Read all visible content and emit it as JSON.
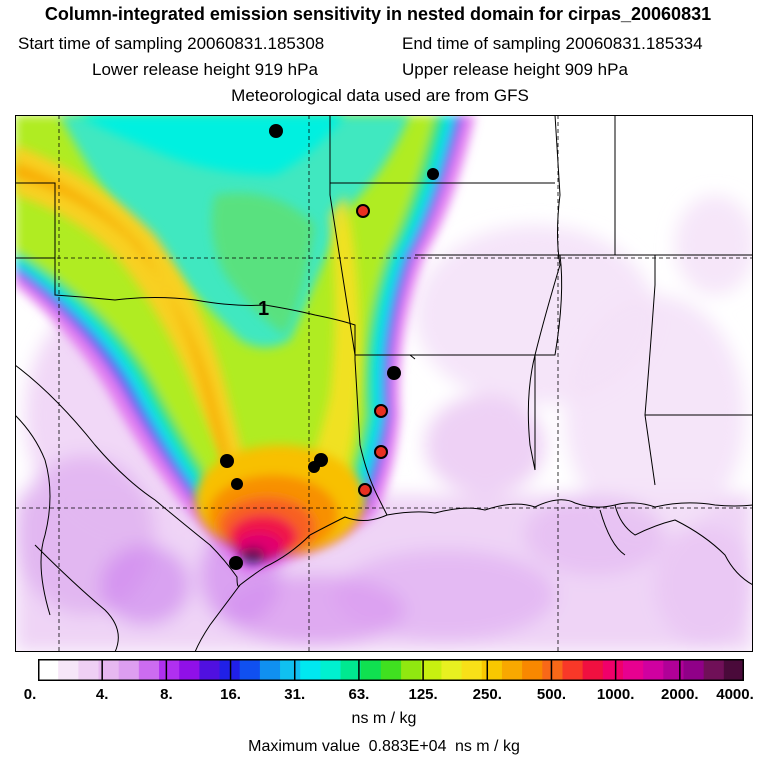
{
  "title": "Column-integrated emission sensitivity in nested domain for cirpas_20060831",
  "sampling": {
    "start_label": "Start time of sampling",
    "start_value": "20060831.185308",
    "end_label": "End time of sampling",
    "end_value": "20060831.185334"
  },
  "release": {
    "lower_label": "Lower release height",
    "lower_value": "919 hPa",
    "upper_label": "Upper release height",
    "upper_value": "909 hPa"
  },
  "met_note": "Meteorological data used are from GFS",
  "map": {
    "contour_label": "1",
    "colors": {
      "background": "#ffffff",
      "low_purple": "#e8c4f0",
      "cyan": "#00f0e6",
      "green": "#80e050",
      "yellow": "#f0e020",
      "orange": "#f5a000",
      "red": "#f01040",
      "magenta": "#e0006a",
      "black_marker": "#000000",
      "red_marker": "#e83020"
    },
    "markers": [
      {
        "kind": "black"
      },
      {
        "kind": "black"
      },
      {
        "kind": "red"
      },
      {
        "kind": "black"
      },
      {
        "kind": "red"
      },
      {
        "kind": "red"
      },
      {
        "kind": "black"
      },
      {
        "kind": "black"
      },
      {
        "kind": "black"
      },
      {
        "kind": "black"
      },
      {
        "kind": "red"
      },
      {
        "kind": "black"
      }
    ]
  },
  "legend": {
    "tick_labels": [
      "0.",
      "4.",
      "8.",
      "16.",
      "31.",
      "63.",
      "125.",
      "250.",
      "500.",
      "1000.",
      "2000.",
      "4000."
    ],
    "colors": [
      "#ffffff",
      "#f6e6f8",
      "#efd0f4",
      "#e7b8f0",
      "#dd9ef0",
      "#cc6cf0",
      "#b030f0",
      "#9010e8",
      "#5010e0",
      "#2020e8",
      "#1050f0",
      "#1090f0",
      "#10c0f0",
      "#00e8f0",
      "#00f0d0",
      "#00e890",
      "#10e050",
      "#40e020",
      "#90e810",
      "#c8f010",
      "#e8f020",
      "#f8e018",
      "#f8c800",
      "#f8a800",
      "#f88800",
      "#f86818",
      "#f83828",
      "#f01040",
      "#f0006a",
      "#e80090",
      "#d000a0",
      "#b00098",
      "#900088",
      "#701058",
      "#4a0a3a"
    ],
    "units": "ns m / kg",
    "max_label": "Maximum value",
    "max_value": "0.883E+04",
    "max_units": "ns m / kg"
  }
}
